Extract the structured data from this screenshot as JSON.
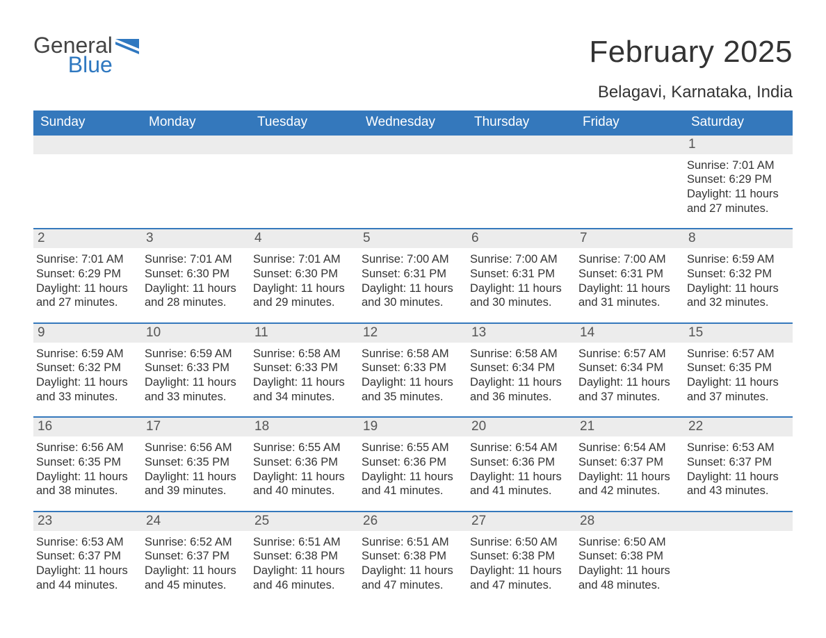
{
  "logo": {
    "line1": "General",
    "line2": "Blue"
  },
  "title": "February 2025",
  "location": "Belagavi, Karnataka, India",
  "colors": {
    "header_bg": "#3478bc",
    "header_text": "#ffffff",
    "daynum_bg": "#ececec",
    "text": "#333333",
    "logo_gray": "#444444",
    "logo_blue": "#2f78c0",
    "page_bg": "#ffffff"
  },
  "typography": {
    "title_fontsize": 44,
    "location_fontsize": 24,
    "header_fontsize": 19,
    "daynum_fontsize": 19,
    "body_fontsize": 16.5,
    "font_family": "Segoe UI"
  },
  "day_labels": [
    "Sunday",
    "Monday",
    "Tuesday",
    "Wednesday",
    "Thursday",
    "Friday",
    "Saturday"
  ],
  "weeks": [
    [
      null,
      null,
      null,
      null,
      null,
      null,
      {
        "n": "1",
        "sunrise": "Sunrise: 7:01 AM",
        "sunset": "Sunset: 6:29 PM",
        "daylight": "Daylight: 11 hours and 27 minutes."
      }
    ],
    [
      {
        "n": "2",
        "sunrise": "Sunrise: 7:01 AM",
        "sunset": "Sunset: 6:29 PM",
        "daylight": "Daylight: 11 hours and 27 minutes."
      },
      {
        "n": "3",
        "sunrise": "Sunrise: 7:01 AM",
        "sunset": "Sunset: 6:30 PM",
        "daylight": "Daylight: 11 hours and 28 minutes."
      },
      {
        "n": "4",
        "sunrise": "Sunrise: 7:01 AM",
        "sunset": "Sunset: 6:30 PM",
        "daylight": "Daylight: 11 hours and 29 minutes."
      },
      {
        "n": "5",
        "sunrise": "Sunrise: 7:00 AM",
        "sunset": "Sunset: 6:31 PM",
        "daylight": "Daylight: 11 hours and 30 minutes."
      },
      {
        "n": "6",
        "sunrise": "Sunrise: 7:00 AM",
        "sunset": "Sunset: 6:31 PM",
        "daylight": "Daylight: 11 hours and 30 minutes."
      },
      {
        "n": "7",
        "sunrise": "Sunrise: 7:00 AM",
        "sunset": "Sunset: 6:31 PM",
        "daylight": "Daylight: 11 hours and 31 minutes."
      },
      {
        "n": "8",
        "sunrise": "Sunrise: 6:59 AM",
        "sunset": "Sunset: 6:32 PM",
        "daylight": "Daylight: 11 hours and 32 minutes."
      }
    ],
    [
      {
        "n": "9",
        "sunrise": "Sunrise: 6:59 AM",
        "sunset": "Sunset: 6:32 PM",
        "daylight": "Daylight: 11 hours and 33 minutes."
      },
      {
        "n": "10",
        "sunrise": "Sunrise: 6:59 AM",
        "sunset": "Sunset: 6:33 PM",
        "daylight": "Daylight: 11 hours and 33 minutes."
      },
      {
        "n": "11",
        "sunrise": "Sunrise: 6:58 AM",
        "sunset": "Sunset: 6:33 PM",
        "daylight": "Daylight: 11 hours and 34 minutes."
      },
      {
        "n": "12",
        "sunrise": "Sunrise: 6:58 AM",
        "sunset": "Sunset: 6:33 PM",
        "daylight": "Daylight: 11 hours and 35 minutes."
      },
      {
        "n": "13",
        "sunrise": "Sunrise: 6:58 AM",
        "sunset": "Sunset: 6:34 PM",
        "daylight": "Daylight: 11 hours and 36 minutes."
      },
      {
        "n": "14",
        "sunrise": "Sunrise: 6:57 AM",
        "sunset": "Sunset: 6:34 PM",
        "daylight": "Daylight: 11 hours and 37 minutes."
      },
      {
        "n": "15",
        "sunrise": "Sunrise: 6:57 AM",
        "sunset": "Sunset: 6:35 PM",
        "daylight": "Daylight: 11 hours and 37 minutes."
      }
    ],
    [
      {
        "n": "16",
        "sunrise": "Sunrise: 6:56 AM",
        "sunset": "Sunset: 6:35 PM",
        "daylight": "Daylight: 11 hours and 38 minutes."
      },
      {
        "n": "17",
        "sunrise": "Sunrise: 6:56 AM",
        "sunset": "Sunset: 6:35 PM",
        "daylight": "Daylight: 11 hours and 39 minutes."
      },
      {
        "n": "18",
        "sunrise": "Sunrise: 6:55 AM",
        "sunset": "Sunset: 6:36 PM",
        "daylight": "Daylight: 11 hours and 40 minutes."
      },
      {
        "n": "19",
        "sunrise": "Sunrise: 6:55 AM",
        "sunset": "Sunset: 6:36 PM",
        "daylight": "Daylight: 11 hours and 41 minutes."
      },
      {
        "n": "20",
        "sunrise": "Sunrise: 6:54 AM",
        "sunset": "Sunset: 6:36 PM",
        "daylight": "Daylight: 11 hours and 41 minutes."
      },
      {
        "n": "21",
        "sunrise": "Sunrise: 6:54 AM",
        "sunset": "Sunset: 6:37 PM",
        "daylight": "Daylight: 11 hours and 42 minutes."
      },
      {
        "n": "22",
        "sunrise": "Sunrise: 6:53 AM",
        "sunset": "Sunset: 6:37 PM",
        "daylight": "Daylight: 11 hours and 43 minutes."
      }
    ],
    [
      {
        "n": "23",
        "sunrise": "Sunrise: 6:53 AM",
        "sunset": "Sunset: 6:37 PM",
        "daylight": "Daylight: 11 hours and 44 minutes."
      },
      {
        "n": "24",
        "sunrise": "Sunrise: 6:52 AM",
        "sunset": "Sunset: 6:37 PM",
        "daylight": "Daylight: 11 hours and 45 minutes."
      },
      {
        "n": "25",
        "sunrise": "Sunrise: 6:51 AM",
        "sunset": "Sunset: 6:38 PM",
        "daylight": "Daylight: 11 hours and 46 minutes."
      },
      {
        "n": "26",
        "sunrise": "Sunrise: 6:51 AM",
        "sunset": "Sunset: 6:38 PM",
        "daylight": "Daylight: 11 hours and 47 minutes."
      },
      {
        "n": "27",
        "sunrise": "Sunrise: 6:50 AM",
        "sunset": "Sunset: 6:38 PM",
        "daylight": "Daylight: 11 hours and 47 minutes."
      },
      {
        "n": "28",
        "sunrise": "Sunrise: 6:50 AM",
        "sunset": "Sunset: 6:38 PM",
        "daylight": "Daylight: 11 hours and 48 minutes."
      },
      null
    ]
  ]
}
